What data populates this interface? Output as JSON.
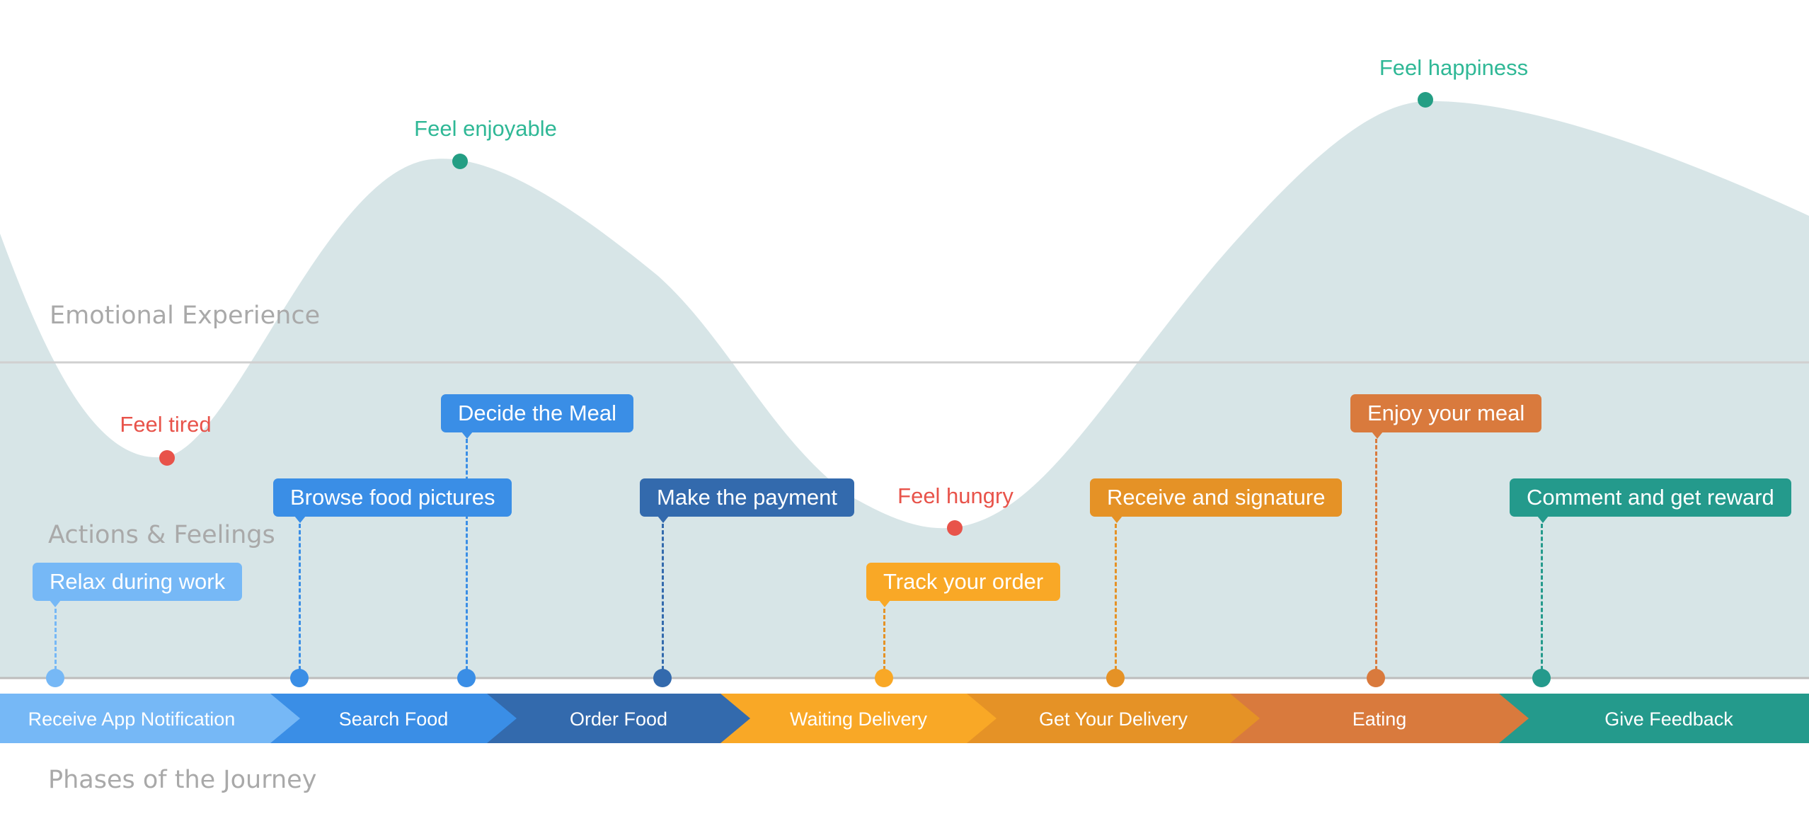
{
  "sections": {
    "emotional": "Emotional Experience",
    "actions": "Actions & Feelings",
    "phases": "Phases of the Journey"
  },
  "feelings": [
    {
      "label": "Feel tired",
      "color": "#e8534a"
    },
    {
      "label": "Feel enjoyable",
      "color": "#2fb896"
    },
    {
      "label": "Feel hungry",
      "color": "#e8534a"
    },
    {
      "label": "Feel happiness",
      "color": "#2fb896"
    }
  ],
  "actions": [
    {
      "label": "Relax during work",
      "color": "#76b8f6"
    },
    {
      "label": "Browse food pictures",
      "color": "#3a8ee6"
    },
    {
      "label": "Decide the Meal",
      "color": "#3a8ee6"
    },
    {
      "label": "Make the payment",
      "color": "#336aad"
    },
    {
      "label": "Track your order",
      "color": "#f9a826"
    },
    {
      "label": "Receive and signature",
      "color": "#e59226"
    },
    {
      "label": "Enjoy your meal",
      "color": "#d97a3d"
    },
    {
      "label": "Comment and get reward",
      "color": "#249a8c"
    }
  ],
  "phases": [
    {
      "label": "Receive App Notification",
      "color": "#76b8f6"
    },
    {
      "label": "Search Food",
      "color": "#3a8ee6"
    },
    {
      "label": "Order Food",
      "color": "#336aad"
    },
    {
      "label": "Waiting Delivery",
      "color": "#f9a826"
    },
    {
      "label": "Get Your Delivery",
      "color": "#e59226"
    },
    {
      "label": "Eating",
      "color": "#d97a3d"
    },
    {
      "label": "Give Feedback",
      "color": "#249a8c"
    }
  ],
  "colors": {
    "wave": "#d7e5e7",
    "feeling_dot_negative": "#e8534a",
    "feeling_dot_positive": "#249e84",
    "divider": "#d0d0d0",
    "baseline": "#bdbdbd"
  }
}
